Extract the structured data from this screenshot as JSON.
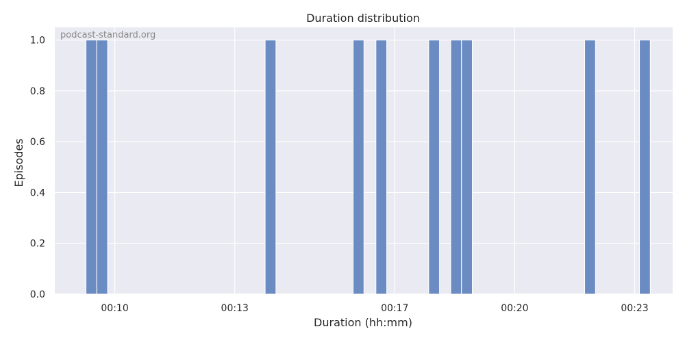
{
  "chart_data": {
    "type": "bar",
    "title": "Duration distribution",
    "xlabel": "Duration (hh:mm)",
    "ylabel": "Episodes",
    "watermark": "podcast-standard.org",
    "x_unit": "minutes",
    "xlim": [
      8.5,
      23.95
    ],
    "ylim": [
      0,
      1.05
    ],
    "bin_width": 0.27,
    "x_ticks": [
      {
        "value": 10,
        "label": "00:10"
      },
      {
        "value": 13,
        "label": "00:13"
      },
      {
        "value": 17,
        "label": "00:17"
      },
      {
        "value": 20,
        "label": "00:20"
      },
      {
        "value": 23,
        "label": "00:23"
      }
    ],
    "y_ticks": [
      {
        "value": 0.0,
        "label": "0.0"
      },
      {
        "value": 0.2,
        "label": "0.2"
      },
      {
        "value": 0.4,
        "label": "0.4"
      },
      {
        "value": 0.6,
        "label": "0.6"
      },
      {
        "value": 0.8,
        "label": "0.8"
      },
      {
        "value": 1.0,
        "label": "1.0"
      }
    ],
    "bins": [
      {
        "start": 9.28,
        "count": 1
      },
      {
        "start": 9.55,
        "count": 1
      },
      {
        "start": 13.76,
        "count": 1
      },
      {
        "start": 15.96,
        "count": 1
      },
      {
        "start": 16.53,
        "count": 1
      },
      {
        "start": 17.85,
        "count": 1
      },
      {
        "start": 18.4,
        "count": 1
      },
      {
        "start": 18.67,
        "count": 1
      },
      {
        "start": 21.75,
        "count": 1
      },
      {
        "start": 23.12,
        "count": 1
      }
    ],
    "grid": true,
    "colors": {
      "bar": "#6b8bc3",
      "plot_background": "#eaeaf2",
      "grid": "#ffffff"
    }
  }
}
